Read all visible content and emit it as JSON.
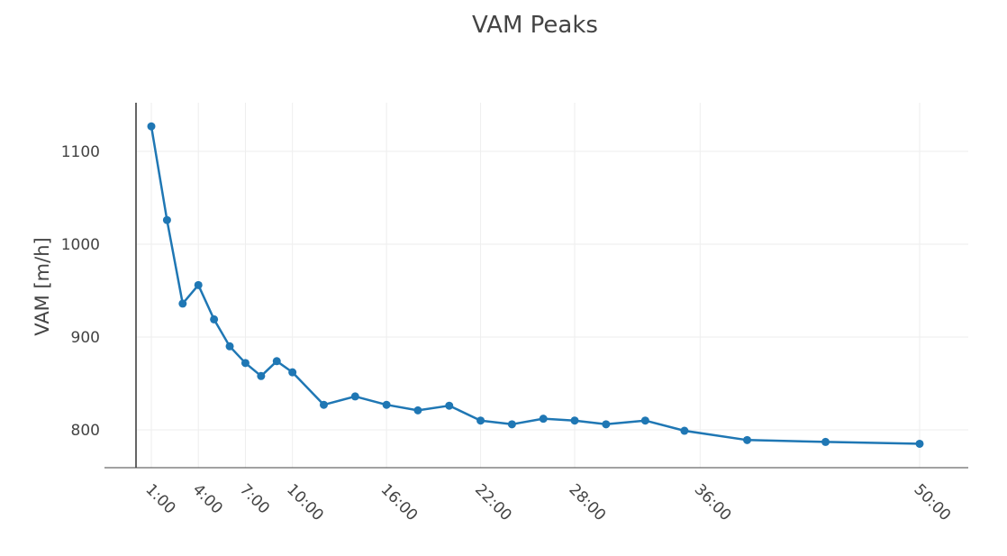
{
  "chart_data": {
    "type": "line",
    "title": "VAM Peaks",
    "xlabel": "",
    "ylabel": "VAM [m/h]",
    "x_unit": "minutes",
    "xlim": [
      0,
      52.2
    ],
    "ylim": [
      760,
      1150
    ],
    "x_ticks": [
      {
        "value": 1,
        "label": "1:00"
      },
      {
        "value": 4,
        "label": "4:00"
      },
      {
        "value": 7,
        "label": "7:00"
      },
      {
        "value": 10,
        "label": "10:00"
      },
      {
        "value": 16,
        "label": "16:00"
      },
      {
        "value": 22,
        "label": "22:00"
      },
      {
        "value": 28,
        "label": "28:00"
      },
      {
        "value": 36,
        "label": "36:00"
      },
      {
        "value": 50,
        "label": "50:00"
      }
    ],
    "y_ticks": [
      800,
      900,
      1000,
      1100
    ],
    "grid": true,
    "color": "#1f77b4",
    "series": [
      {
        "x": [
          1,
          2,
          3,
          4,
          5,
          6,
          7,
          8,
          9,
          10,
          12,
          14,
          16,
          18,
          20,
          22,
          24,
          26,
          28,
          30,
          32.5,
          35,
          39,
          44,
          50
        ],
        "values": [
          1127,
          1026,
          936,
          956,
          919,
          890,
          872,
          858,
          874,
          862,
          827,
          836,
          827,
          821,
          826,
          810,
          806,
          812,
          810,
          806,
          810,
          799,
          789,
          787,
          785
        ]
      }
    ]
  }
}
